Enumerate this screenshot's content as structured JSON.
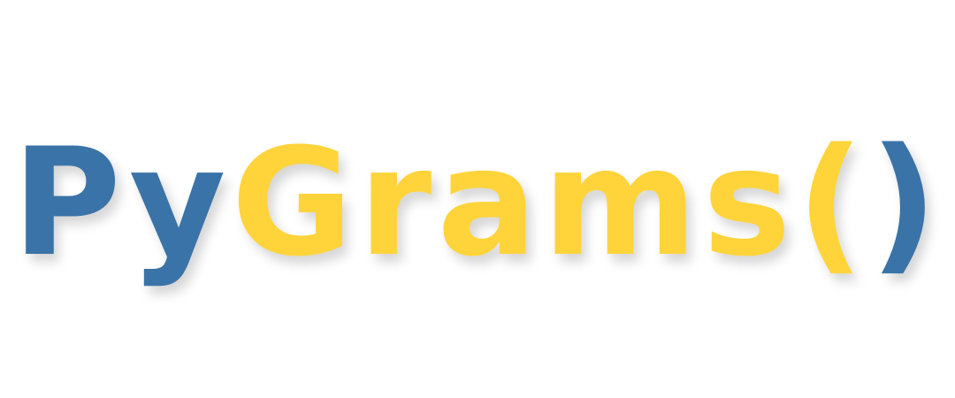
{
  "logo": {
    "part_py": "Py",
    "part_grams": "Grams",
    "open_paren": "(",
    "close_paren": ")"
  },
  "colors": {
    "blue": "#3a73a8",
    "yellow": "#ffd43b",
    "background": "#ffffff"
  }
}
